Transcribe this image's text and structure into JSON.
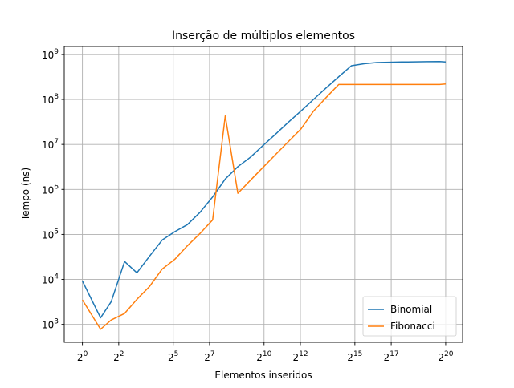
{
  "chart_data": {
    "type": "line",
    "title": "Inserção de múltiplos elementos",
    "xlabel": "Elementos inseridos",
    "ylabel": "Tempo (ns)",
    "x_scale": "log2",
    "y_scale": "log10",
    "x_ticks": [
      {
        "base": "2",
        "exp": "0",
        "value": 1
      },
      {
        "base": "2",
        "exp": "2",
        "value": 4
      },
      {
        "base": "2",
        "exp": "5",
        "value": 32
      },
      {
        "base": "2",
        "exp": "7",
        "value": 128
      },
      {
        "base": "2",
        "exp": "10",
        "value": 1024
      },
      {
        "base": "2",
        "exp": "12",
        "value": 4096
      },
      {
        "base": "2",
        "exp": "15",
        "value": 32768
      },
      {
        "base": "2",
        "exp": "17",
        "value": 131072
      },
      {
        "base": "2",
        "exp": "20",
        "value": 1048576
      }
    ],
    "y_ticks": [
      {
        "base": "10",
        "exp": "3",
        "value": 1000
      },
      {
        "base": "10",
        "exp": "4",
        "value": 10000
      },
      {
        "base": "10",
        "exp": "5",
        "value": 100000
      },
      {
        "base": "10",
        "exp": "6",
        "value": 1000000
      },
      {
        "base": "10",
        "exp": "7",
        "value": 10000000
      },
      {
        "base": "10",
        "exp": "8",
        "value": 100000000
      },
      {
        "base": "10",
        "exp": "9",
        "value": 1000000000
      }
    ],
    "xlim": [
      0.5,
      2000000
    ],
    "ylim": [
      400,
      1500000000
    ],
    "grid": true,
    "legend_position": "bottom-right",
    "x": [
      1,
      2,
      3,
      5,
      8,
      13,
      21,
      34,
      55,
      89,
      144,
      233,
      377,
      610,
      987,
      1597,
      2584,
      4181,
      6765,
      10946,
      17711,
      28657,
      46368,
      75025,
      121393,
      196418,
      317811,
      514229,
      832040,
      1048576
    ],
    "series": [
      {
        "name": "Binomial",
        "color": "#1f77b4",
        "values": [
          9200,
          1400,
          3200,
          25000,
          14000,
          33000,
          75000,
          115000,
          165000,
          310000,
          680000,
          1700000,
          3200000,
          5200000,
          9500000,
          17000000,
          31000000,
          55000000,
          100000000,
          180000000,
          320000000,
          560000000,
          620000000,
          660000000,
          670000000,
          680000000,
          685000000,
          690000000,
          695000000,
          680000000
        ]
      },
      {
        "name": "Fibonacci",
        "color": "#ff7f0e",
        "values": [
          3500,
          780,
          1250,
          1750,
          3600,
          7000,
          17000,
          28000,
          56000,
          105000,
          210000,
          43000000,
          820000,
          1600000,
          3100000,
          6000000,
          11500000,
          22000000,
          55000000,
          110000000,
          215000000,
          215000000,
          215000000,
          215000000,
          215000000,
          215000000,
          215000000,
          215000000,
          215000000,
          220000000
        ]
      }
    ]
  }
}
